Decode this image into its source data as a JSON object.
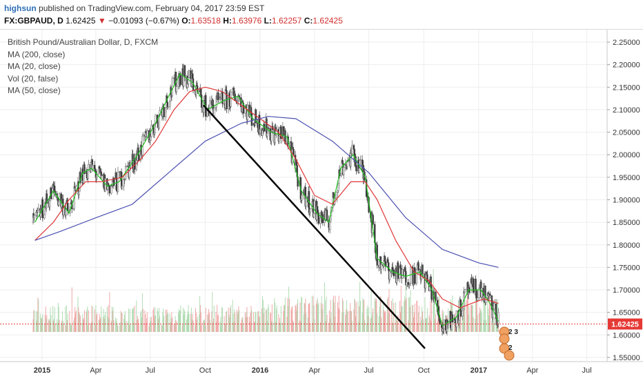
{
  "header": {
    "user": "highsun",
    "published_text": "published on TradingView.com, February 04, 2017 23:59 EST",
    "symbol": "FX:GBPAUD, D",
    "last": "1.62425",
    "change_arrow": "▼",
    "change": "−0.01093 (−0.67%)",
    "open_label": "O:",
    "open": "1.63518",
    "high_label": "H:",
    "high": "1.63976",
    "low_label": "L:",
    "low": "1.62257",
    "close_label": "C:",
    "close": "1.62425"
  },
  "legend": {
    "title": "British Pound/Australian Dollar, D, FXCM",
    "items": [
      "MA (200, close)",
      "MA (20, close)",
      "Vol (20, false)",
      "MA (50, close)"
    ]
  },
  "colors": {
    "price_up": "#6f6f6f",
    "price_down": "#3a3a3a",
    "ma20": "#1fc01f",
    "ma50": "#e03535",
    "ma200": "#4a4fb0",
    "trendline": "#000000",
    "current_price_tag": "#e53935",
    "volume_up": "#a5d6a7",
    "volume_down": "#ef9a9a"
  },
  "chart_data": {
    "type": "line",
    "title": "British Pound/Australian Dollar, D, FXCM",
    "ylim": [
      1.53,
      2.26
    ],
    "y_scale": "linear",
    "grid": true,
    "x_ticks": [
      "2015",
      "Apr",
      "Jul",
      "Oct",
      "2016",
      "Apr",
      "Jul",
      "Oct",
      "2017",
      "Apr",
      "Jul"
    ],
    "y_ticks": [
      "2.25000",
      "2.20000",
      "2.15000",
      "2.10000",
      "2.05000",
      "2.00000",
      "1.95000",
      "1.90000",
      "1.85000",
      "1.80000",
      "1.75000",
      "1.70000",
      "1.65000",
      "1.60000",
      "1.55000"
    ],
    "current_price": "1.62425",
    "series": [
      {
        "name": "MA (20, close)",
        "x": [
          "2014-12-20",
          "2015-01-20",
          "2015-02-15",
          "2015-03-10",
          "2015-03-25",
          "2015-04-20",
          "2015-05-10",
          "2015-06-10",
          "2015-07-10",
          "2015-08-01",
          "2015-08-20",
          "2015-09-10",
          "2015-10-05",
          "2015-11-01",
          "2015-11-25",
          "2015-12-20",
          "2016-01-20",
          "2016-02-15",
          "2016-03-10",
          "2016-04-05",
          "2016-04-25",
          "2016-05-15",
          "2016-06-05",
          "2016-06-25",
          "2016-07-15",
          "2016-08-10",
          "2016-09-01",
          "2016-09-25",
          "2016-10-15",
          "2016-11-01",
          "2016-11-25",
          "2016-12-15",
          "2017-01-05",
          "2017-01-20",
          "2017-02-03"
        ],
        "y": [
          1.85,
          1.92,
          1.87,
          1.96,
          1.97,
          1.93,
          1.94,
          2.0,
          2.07,
          2.13,
          2.18,
          2.16,
          2.1,
          2.12,
          2.13,
          2.08,
          2.05,
          2.04,
          1.92,
          1.87,
          1.85,
          1.97,
          2.0,
          1.95,
          1.77,
          1.74,
          1.73,
          1.74,
          1.7,
          1.62,
          1.64,
          1.7,
          1.7,
          1.67,
          1.63
        ]
      },
      {
        "name": "MA (50, close)",
        "x": [
          "2014-12-20",
          "2015-01-20",
          "2015-02-15",
          "2015-03-15",
          "2015-04-10",
          "2015-05-15",
          "2015-06-15",
          "2015-07-10",
          "2015-08-10",
          "2015-09-05",
          "2015-10-01",
          "2015-10-30",
          "2015-11-30",
          "2016-01-01",
          "2016-02-01",
          "2016-03-01",
          "2016-04-01",
          "2016-05-01",
          "2016-06-01",
          "2016-06-25",
          "2016-07-15",
          "2016-08-15",
          "2016-09-15",
          "2016-10-10",
          "2016-11-01",
          "2016-12-01",
          "2016-12-20",
          "2017-01-10",
          "2017-02-03"
        ],
        "y": [
          1.81,
          1.85,
          1.9,
          1.94,
          1.94,
          1.95,
          1.99,
          2.03,
          2.1,
          2.14,
          2.15,
          2.14,
          2.11,
          2.08,
          2.05,
          1.99,
          1.91,
          1.89,
          1.94,
          1.94,
          1.9,
          1.81,
          1.74,
          1.72,
          1.68,
          1.66,
          1.67,
          1.68,
          1.67
        ]
      },
      {
        "name": "MA (200, close)",
        "x": [
          "2014-12-20",
          "2015-02-01",
          "2015-04-01",
          "2015-06-01",
          "2015-08-01",
          "2015-10-01",
          "2015-12-01",
          "2016-01-15",
          "2016-03-01",
          "2016-05-01",
          "2016-07-01",
          "2016-09-01",
          "2016-11-01",
          "2017-01-01",
          "2017-02-03"
        ],
        "y": [
          1.81,
          1.83,
          1.86,
          1.89,
          1.96,
          2.03,
          2.07,
          2.085,
          2.08,
          2.03,
          1.96,
          1.86,
          1.79,
          1.76,
          1.75
        ]
      },
      {
        "name": "Trendline",
        "x": [
          "2015-09-28",
          "2016-10-03"
        ],
        "y": [
          2.11,
          1.57
        ]
      }
    ]
  }
}
